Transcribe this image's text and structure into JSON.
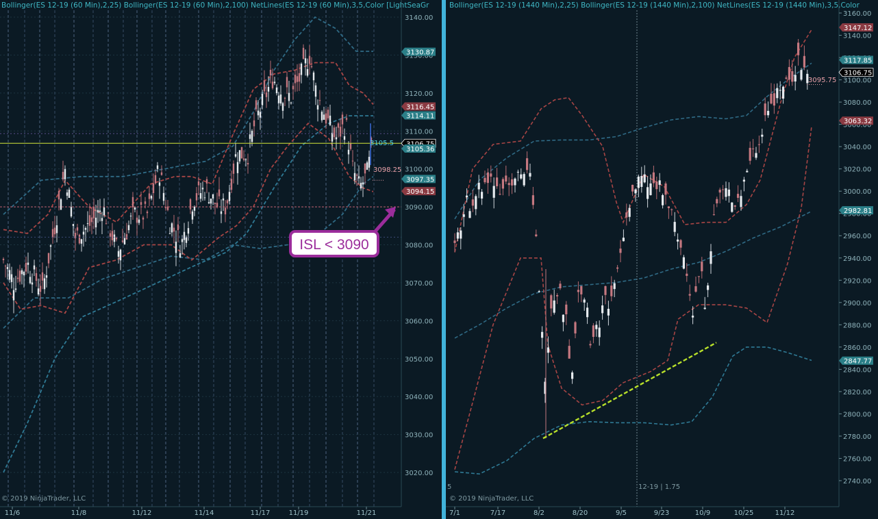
{
  "left_chart": {
    "header": "Bollinger(ES 12-19 (60 Min),2,25)  Bollinger(ES 12-19 (60 Min),2,100)  NetLines(ES 12-19 (60 Min),3,5,Color [LightSeaGr",
    "copyright": "© 2019 NinjaTrader, LLC",
    "annotation": "ISL < 3090",
    "price_tags": [
      {
        "value": "3130.87",
        "color": "#2b7f88"
      },
      {
        "value": "3116.45",
        "color": "#8a3a42"
      },
      {
        "value": "3114.11",
        "color": "#2b7f88"
      },
      {
        "value": "3106.75",
        "color": "#000000"
      },
      {
        "value": "3105.36",
        "color": "#2b7f88"
      },
      {
        "value": "3097.35",
        "color": "#2b7f88"
      },
      {
        "value": "3094.15",
        "color": "#8a3a42"
      }
    ],
    "inline_labels": {
      "current": "3105.5",
      "low": "3098.25"
    }
  },
  "right_chart": {
    "header": "Bollinger(ES 12-19 (1440 Min),2,25)  Bollinger(ES 12-19 (1440 Min),2,100)  NetLines(ES 12-19 (1440 Min),3,5,Color",
    "copyright": "© 2019 NinjaTrader, LLC",
    "contract_label": "12-19 | 1.75",
    "left_edge_label": "5",
    "price_tags": [
      {
        "value": "3147.12",
        "color": "#8a3a42"
      },
      {
        "value": "3117.85",
        "color": "#2b7f88"
      },
      {
        "value": "3106.75",
        "color": "#000000"
      },
      {
        "value": "3063.32",
        "color": "#8a3a42"
      },
      {
        "value": "2982.81",
        "color": "#2b7f88"
      },
      {
        "value": "2847.77",
        "color": "#2b7f88"
      }
    ],
    "inline_labels": {
      "low": "3095.75"
    }
  },
  "chart_data": [
    {
      "type": "candlestick",
      "timeframe": "60 Min",
      "instrument": "ES 12-19",
      "x_ticks": [
        "11/6",
        "11/8",
        "11/12",
        "11/14",
        "11/17",
        "11/19",
        "11/21"
      ],
      "y_ticks": [
        3020,
        3030,
        3040,
        3050,
        3060,
        3070,
        3080,
        3090,
        3100,
        3110,
        3120,
        3130,
        3140
      ],
      "ylim": [
        3017,
        3144
      ],
      "last_price": 3106.75,
      "horizontal_line": 3090,
      "indicators": [
        "Bollinger(2,25)",
        "Bollinger(2,100)",
        "NetLines(3,5)"
      ]
    },
    {
      "type": "candlestick",
      "timeframe": "1440 Min",
      "instrument": "ES 12-19",
      "x_ticks": [
        "7/1",
        "7/17",
        "8/2",
        "8/20",
        "9/5",
        "9/23",
        "10/9",
        "10/25",
        "11/12"
      ],
      "y_ticks": [
        2740,
        2760,
        2780,
        2800,
        2820,
        2840,
        2860,
        2880,
        2900,
        2920,
        2940,
        2960,
        2980,
        3000,
        3020,
        3040,
        3060,
        3080,
        3100,
        3120,
        3140,
        3160
      ],
      "ylim": [
        2733,
        3167
      ],
      "last_price": 3106.75,
      "trendline": {
        "from": [
          "8/2",
          2778
        ],
        "to": [
          "10/17",
          2864
        ]
      },
      "indicators": [
        "Bollinger(2,25)",
        "Bollinger(2,100)",
        "NetLines(3,5)"
      ]
    }
  ]
}
